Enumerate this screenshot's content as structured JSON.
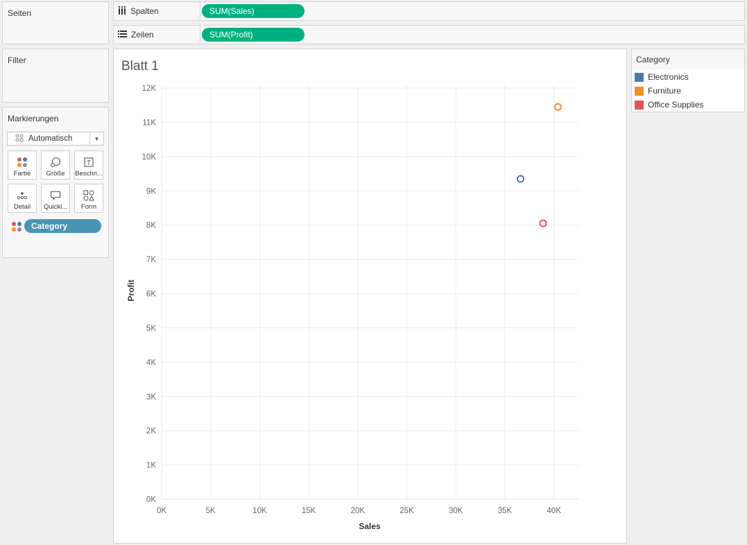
{
  "cards": {
    "pages_title": "Seiten",
    "filters_title": "Filter",
    "marks_title": "Markierungen"
  },
  "shelves": {
    "columns": {
      "label": "Spalten",
      "pill": "SUM(Sales)"
    },
    "rows": {
      "label": "Zeilen",
      "pill": "SUM(Profit)"
    }
  },
  "marks": {
    "type": "Automatisch",
    "buttons": [
      {
        "label": "Farbe",
        "icon": "color-icon"
      },
      {
        "label": "Größe",
        "icon": "size-icon"
      },
      {
        "label": "Beschri...",
        "icon": "label-icon"
      },
      {
        "label": "Detail",
        "icon": "detail-icon"
      },
      {
        "label": "Quickl...",
        "icon": "tooltip-icon"
      },
      {
        "label": "Form",
        "icon": "shape-icon"
      }
    ],
    "color_field": "Category"
  },
  "sheet": {
    "title": "Blatt 1"
  },
  "legend": {
    "title": "Category",
    "items": [
      {
        "label": "Electronics",
        "color": "#4e79a7"
      },
      {
        "label": "Furniture",
        "color": "#f28e2b"
      },
      {
        "label": "Office Supplies",
        "color": "#e15759"
      }
    ]
  },
  "chart_data": {
    "type": "scatter",
    "title": "Blatt 1",
    "xlabel": "Sales",
    "ylabel": "Profit",
    "xlim": [
      0,
      42500
    ],
    "ylim": [
      0,
      12000
    ],
    "x_ticks": [
      0,
      5000,
      10000,
      15000,
      20000,
      25000,
      30000,
      35000,
      40000
    ],
    "x_tick_labels": [
      "0K",
      "5K",
      "10K",
      "15K",
      "20K",
      "25K",
      "30K",
      "35K",
      "40K"
    ],
    "y_ticks": [
      0,
      1000,
      2000,
      3000,
      4000,
      5000,
      6000,
      7000,
      8000,
      9000,
      10000,
      11000,
      12000
    ],
    "y_tick_labels": [
      "0K",
      "1K",
      "2K",
      "3K",
      "4K",
      "5K",
      "6K",
      "7K",
      "8K",
      "9K",
      "10K",
      "11K",
      "12K"
    ],
    "grid": true,
    "marker": "open-circle",
    "series": [
      {
        "name": "Electronics",
        "color": "#4e79a7",
        "x": [
          36600
        ],
        "y": [
          9350
        ]
      },
      {
        "name": "Furniture",
        "color": "#f28e2b",
        "x": [
          40400
        ],
        "y": [
          11450
        ]
      },
      {
        "name": "Office Supplies",
        "color": "#e15759",
        "x": [
          38900
        ],
        "y": [
          8050
        ]
      }
    ]
  }
}
